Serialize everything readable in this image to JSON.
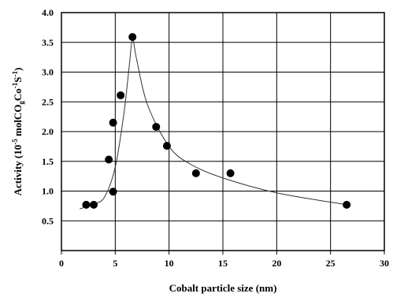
{
  "chart_data": {
    "type": "scatter",
    "title": "",
    "xlabel": "Cobalt particle size (nm)",
    "ylabel": {
      "prefix": "Activity (10",
      "exp1": "-5",
      "mid1": " molCO",
      "sub1": "g",
      "mid2": "Co",
      "sup2": "-1",
      "mid3": "S",
      "sup3": "-1",
      "suffix": ")"
    },
    "xlim": [
      0,
      30
    ],
    "ylim": [
      0,
      4.0
    ],
    "x_ticks": [
      0,
      5,
      10,
      15,
      20,
      25,
      30
    ],
    "y_ticks": [
      0.5,
      1.0,
      1.5,
      2.0,
      2.5,
      3.0,
      3.5,
      4.0
    ],
    "x_tick_labels": [
      "0",
      "5",
      "10",
      "15",
      "20",
      "25",
      "30"
    ],
    "y_tick_labels": [
      "0.5",
      "1.0",
      "1.5",
      "2.0",
      "2.5",
      "3.0",
      "3.5",
      "4.0"
    ],
    "grid": true,
    "series": [
      {
        "points": [
          {
            "x": 2.3,
            "y": 0.77
          },
          {
            "x": 3.0,
            "y": 0.77
          },
          {
            "x": 4.4,
            "y": 1.53
          },
          {
            "x": 4.8,
            "y": 2.15
          },
          {
            "x": 4.8,
            "y": 0.99
          },
          {
            "x": 5.5,
            "y": 2.61
          },
          {
            "x": 6.6,
            "y": 3.59
          },
          {
            "x": 8.8,
            "y": 2.08
          },
          {
            "x": 9.8,
            "y": 1.76
          },
          {
            "x": 12.5,
            "y": 1.3
          },
          {
            "x": 15.7,
            "y": 1.3
          },
          {
            "x": 26.5,
            "y": 0.77
          }
        ]
      }
    ],
    "trend_curve": [
      {
        "x": 1.7,
        "y": 0.7
      },
      {
        "x": 3.0,
        "y": 0.78
      },
      {
        "x": 4.0,
        "y": 0.9
      },
      {
        "x": 5.0,
        "y": 1.4
      },
      {
        "x": 5.8,
        "y": 2.3
      },
      {
        "x": 6.3,
        "y": 3.1
      },
      {
        "x": 6.6,
        "y": 3.55
      },
      {
        "x": 7.0,
        "y": 3.2
      },
      {
        "x": 8.0,
        "y": 2.45
      },
      {
        "x": 10.0,
        "y": 1.75
      },
      {
        "x": 12.0,
        "y": 1.45
      },
      {
        "x": 15.0,
        "y": 1.22
      },
      {
        "x": 20.0,
        "y": 0.97
      },
      {
        "x": 26.5,
        "y": 0.77
      }
    ],
    "colors": {
      "points": "#000000",
      "curve": "#333333",
      "grid": "#000000"
    }
  }
}
